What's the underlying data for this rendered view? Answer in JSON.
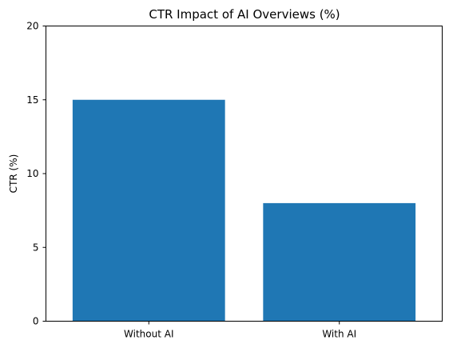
{
  "chart_data": {
    "type": "bar",
    "title": "CTR Impact of AI Overviews (%)",
    "xlabel": "",
    "ylabel": "CTR (%)",
    "categories": [
      "Without AI",
      "With AI"
    ],
    "values": [
      15,
      8
    ],
    "ylim": [
      0,
      20
    ],
    "yticks": [
      "0",
      "5",
      "10",
      "15",
      "20"
    ],
    "grid": false,
    "legend": "none",
    "bar_color": "#1f77b4"
  }
}
